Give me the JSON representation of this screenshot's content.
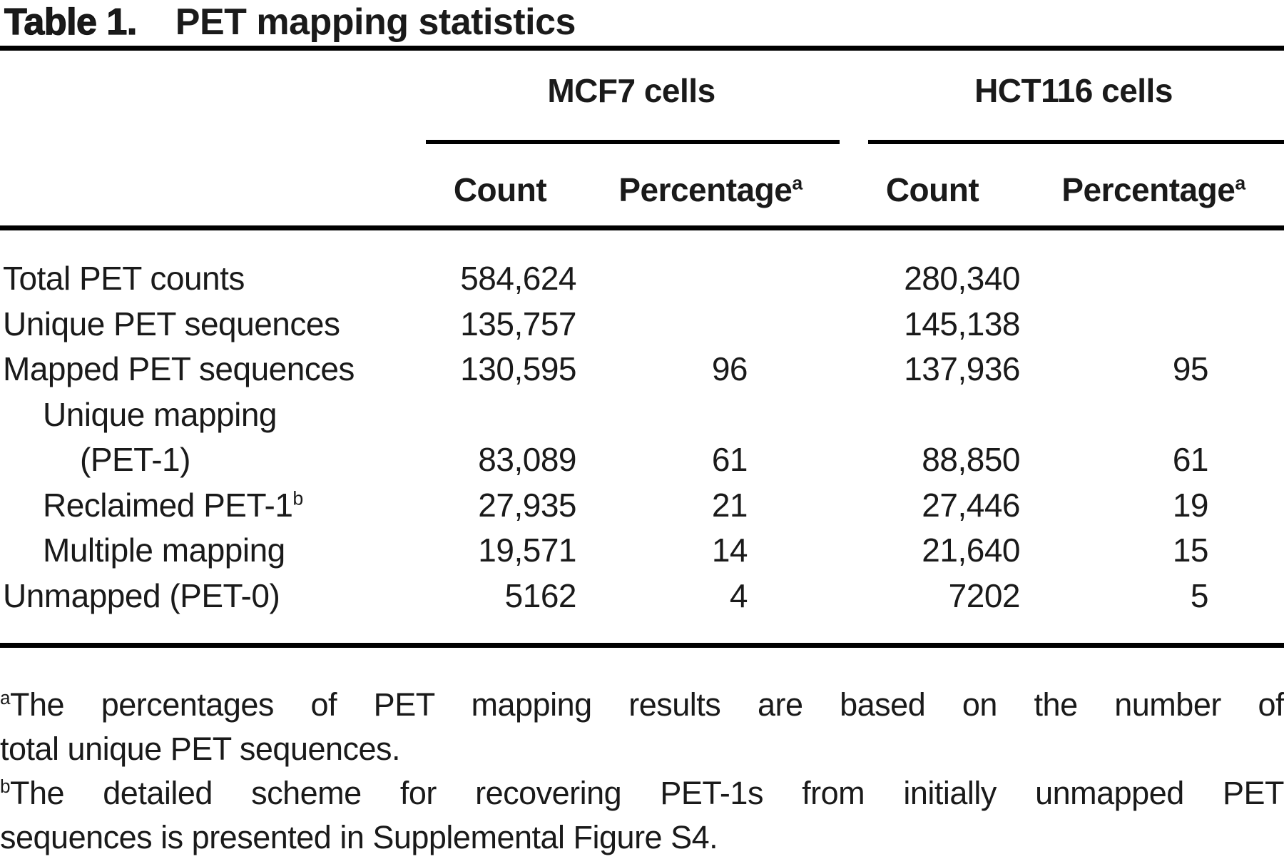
{
  "page": {
    "background": "#ffffff",
    "text_color": "#1a1a1a",
    "rule_color": "#000000"
  },
  "title": {
    "prefix": "Table 1.",
    "text": "PET mapping statistics"
  },
  "columns": {
    "group_mcf7": "MCF7 cells",
    "group_hct116": "HCT116 cells",
    "count_label": "Count",
    "percentage_label": "Percentage",
    "percentage_superscript": "a"
  },
  "rows": [
    {
      "label": "Total PET counts",
      "indent": 0,
      "mcf7_count": "584,624",
      "mcf7_pct": "",
      "hct116_count": "280,340",
      "hct116_pct": ""
    },
    {
      "label": "Unique PET sequences",
      "indent": 0,
      "mcf7_count": "135,757",
      "mcf7_pct": "",
      "hct116_count": "145,138",
      "hct116_pct": ""
    },
    {
      "label": "Mapped PET sequences",
      "indent": 0,
      "mcf7_count": "130,595",
      "mcf7_pct": "96",
      "hct116_count": "137,936",
      "hct116_pct": "95"
    },
    {
      "label": "Unique mapping",
      "indent": 1,
      "mcf7_count": "",
      "mcf7_pct": "",
      "hct116_count": "",
      "hct116_pct": ""
    },
    {
      "label": "(PET-1)",
      "indent": 2,
      "mcf7_count": "83,089",
      "mcf7_pct": "61",
      "hct116_count": "88,850",
      "hct116_pct": "61"
    },
    {
      "label": "Reclaimed PET-1",
      "label_superscript": "b",
      "indent": 1,
      "mcf7_count": "27,935",
      "mcf7_pct": "21",
      "hct116_count": "27,446",
      "hct116_pct": "19"
    },
    {
      "label": "Multiple mapping",
      "indent": 1,
      "mcf7_count": "19,571",
      "mcf7_pct": "14",
      "hct116_count": "21,640",
      "hct116_pct": "15"
    },
    {
      "label": "Unmapped (PET-0)",
      "indent": 0,
      "mcf7_count": "5162",
      "mcf7_pct": "4",
      "hct116_count": "7202",
      "hct116_pct": "5"
    }
  ],
  "footnotes": [
    {
      "marker": "a",
      "line1": "The percentages of PET mapping results are based on the number of",
      "line2": "total unique PET sequences."
    },
    {
      "marker": "b",
      "line1": "The detailed scheme for recovering PET-1s from initially unmapped PET",
      "line2": "sequences is presented in Supplemental Figure S4."
    }
  ]
}
